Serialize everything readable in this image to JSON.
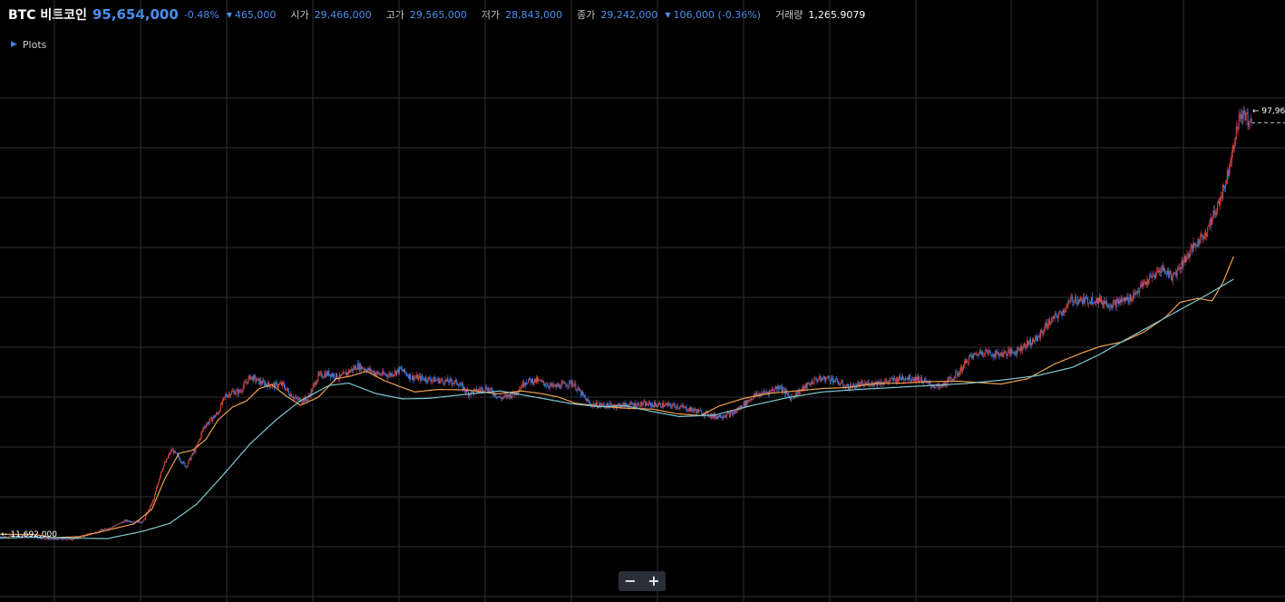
{
  "header": {
    "symbol": "BTC 비트코인",
    "price": "95,654,000",
    "change_pct": "-0.48%",
    "change_arrow": "▼",
    "change_amt": "465,000",
    "open_label": "시가",
    "open_value": "29,466,000",
    "high_label": "고가",
    "high_value": "29,565,000",
    "low_label": "저가",
    "low_value": "28,843,000",
    "close_label": "종가",
    "close_value": "29,242,000",
    "close_arrow": "▼",
    "close_change": "106,000 (-0.36%)",
    "volume_label": "거래량",
    "volume_value": "1,265.9079"
  },
  "plots_toggle": {
    "label": "Plots"
  },
  "price_tags": {
    "low_tag": "← 11,692,000",
    "high_tag": "← 97,96"
  },
  "zoom": {
    "minus_label": "−",
    "plus_label": "+"
  },
  "colors": {
    "background": "#000000",
    "grid": "#2b2f36",
    "up": "#e0463e",
    "down": "#3d7fe8",
    "ma_short": "#f0a050",
    "ma_long": "#7fc8d0",
    "accent": "#4b8ff0"
  },
  "chart_data": {
    "type": "line",
    "grid": true,
    "legend": "none",
    "x_range_candles": [
      0,
      700
    ],
    "series": [
      {
        "style": "candlestick-path",
        "x": [
          0,
          14,
          28,
          40,
          52,
          62,
          70,
          80,
          86,
          90,
          96,
          104,
          110,
          114,
          122,
          126,
          130,
          134,
          140,
          146,
          152,
          158,
          162,
          166,
          172,
          178,
          184,
          190,
          200,
          212,
          218,
          224,
          230,
          240,
          256,
          262,
          272,
          280,
          288,
          294,
          300,
          310,
          320,
          330,
          340,
          360,
          378,
          392,
          400,
          410,
          422,
          430,
          436,
          442,
          456,
          464,
          474,
          484,
          496,
          506,
          514,
          520,
          526,
          536,
          542,
          550,
          556,
          568,
          574,
          580,
          586,
          594,
          600,
          606,
          612,
          622,
          632,
          640,
          650,
          656,
          666,
          674,
          680,
          686,
          690,
          694,
          700
        ],
        "y": [
          11.9,
          12.0,
          11.4,
          11.4,
          12.6,
          13.8,
          15.1,
          14.9,
          19.5,
          25.2,
          29.6,
          26.2,
          30.1,
          34.2,
          37.1,
          40.5,
          41.3,
          41.3,
          44.4,
          43.2,
          42.6,
          42.8,
          41.0,
          39.7,
          39.8,
          44.5,
          45.1,
          44.2,
          46.6,
          44.9,
          44.8,
          45.9,
          44.3,
          43.9,
          43.2,
          41.0,
          42.2,
          40.0,
          41.0,
          43.5,
          43.6,
          42.3,
          43.2,
          38.8,
          38.5,
          38.8,
          38.5,
          37.2,
          36.3,
          36.9,
          40.6,
          41.3,
          42.5,
          40.1,
          43.8,
          44.1,
          42.3,
          42.9,
          43.4,
          44.3,
          44.0,
          42.8,
          42.2,
          45.1,
          48.2,
          49.6,
          48.9,
          49.5,
          51.0,
          52.1,
          55.2,
          57.5,
          60.2,
          59.8,
          60.1,
          59.1,
          60.3,
          63.2,
          66.4,
          64.7,
          70.0,
          73.5,
          78.0,
          84.5,
          92.0,
          97.9,
          96.0
        ]
      },
      {
        "style": "ma-short",
        "x": [
          0,
          20,
          30,
          45,
          60,
          75,
          85,
          92,
          100,
          108,
          115,
          122,
          130,
          138,
          145,
          152,
          160,
          168,
          178,
          188,
          196,
          205,
          215,
          225,
          232,
          245,
          262,
          278,
          292,
          302,
          312,
          322,
          335,
          350,
          365,
          378,
          392,
          402,
          416,
          430,
          445,
          460,
          474,
          490,
          505,
          520,
          535,
          548,
          560,
          575,
          590,
          605,
          615,
          628,
          640,
          652,
          660,
          670,
          678,
          684,
          690
        ],
        "y": [
          12.4,
          12.3,
          11.7,
          11.9,
          13.2,
          14.5,
          17.5,
          23.5,
          28.8,
          29.5,
          31.6,
          35.6,
          38.2,
          39.5,
          42.0,
          42.8,
          40.5,
          38.6,
          40.2,
          44.0,
          44.5,
          45.5,
          43.6,
          42.2,
          41.3,
          41.8,
          41.7,
          40.9,
          41.5,
          41.0,
          40.3,
          39.0,
          38.4,
          38.0,
          37.8,
          36.9,
          36.5,
          38.4,
          40.0,
          41.0,
          41.5,
          42.0,
          42.2,
          43.0,
          43.1,
          43.4,
          43.5,
          43.2,
          42.9,
          44.0,
          47.0,
          49.2,
          50.5,
          51.5,
          53.5,
          56.5,
          59.5,
          60.3,
          59.8,
          63.5,
          68.8
        ]
      },
      {
        "style": "ma-long",
        "x": [
          0,
          20,
          40,
          60,
          80,
          95,
          110,
          125,
          140,
          155,
          168,
          184,
          195,
          210,
          225,
          240,
          260,
          280,
          300,
          320,
          335,
          350,
          365,
          380,
          400,
          420,
          440,
          460,
          480,
          500,
          520,
          540,
          560,
          580,
          600,
          615,
          630,
          645,
          660,
          675,
          690
        ],
        "y": [
          11.6,
          11.8,
          11.6,
          11.5,
          13.0,
          14.6,
          18.5,
          24.5,
          30.8,
          35.8,
          39.5,
          42.6,
          43.1,
          41.0,
          39.9,
          40.0,
          40.8,
          41.5,
          40.2,
          38.9,
          38.3,
          38.5,
          37.3,
          36.3,
          36.6,
          38.5,
          40.1,
          41.3,
          41.8,
          42.2,
          42.6,
          43.0,
          43.7,
          44.6,
          46.3,
          48.9,
          52.0,
          55.0,
          58.0,
          61.0,
          64.2
        ]
      }
    ],
    "annotations": [
      "← 11,692,000",
      "← 97,96"
    ]
  }
}
